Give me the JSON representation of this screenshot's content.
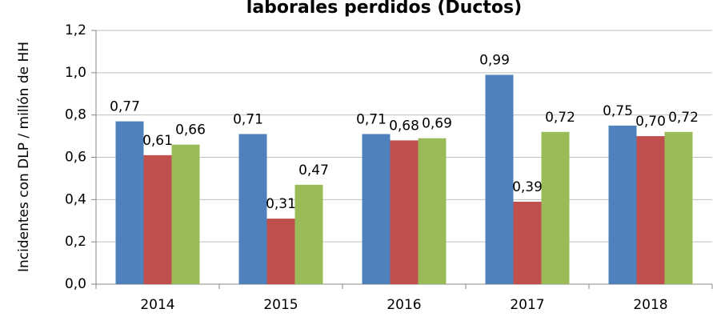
{
  "chart_data": {
    "type": "bar",
    "title": "laborales perdidos (Ductos)",
    "ylabel": "Incidentes con DLP / millón de HH",
    "categories": [
      "2014",
      "2015",
      "2016",
      "2017",
      "2018"
    ],
    "series": [
      {
        "color": "#4f81bd",
        "values": [
          0.77,
          0.71,
          0.71,
          0.99,
          0.75
        ],
        "value_labels": [
          "0,77",
          "0,71",
          "0,71",
          "0,99",
          "0,75"
        ]
      },
      {
        "color": "#c0504d",
        "values": [
          0.61,
          0.31,
          0.68,
          0.39,
          0.7
        ],
        "value_labels": [
          "0,61",
          "0,31",
          "0,68",
          "0,39",
          "0,70"
        ]
      },
      {
        "color": "#9bbb59",
        "values": [
          0.66,
          0.47,
          0.69,
          0.72,
          0.72
        ],
        "value_labels": [
          "0,66",
          "0,47",
          "0,69",
          "0,72",
          "0,72"
        ]
      }
    ],
    "ylim": [
      0,
      1.2
    ],
    "yticks": [
      {
        "value": 0,
        "label": "0,0"
      },
      {
        "value": 0.2,
        "label": "0,2"
      },
      {
        "value": 0.4,
        "label": "0,4"
      },
      {
        "value": 0.6,
        "label": "0,6"
      },
      {
        "value": 0.8,
        "label": "0,8"
      },
      {
        "value": 1.0,
        "label": "1,0"
      },
      {
        "value": 1.2,
        "label": "1,2"
      }
    ],
    "grid": true
  }
}
